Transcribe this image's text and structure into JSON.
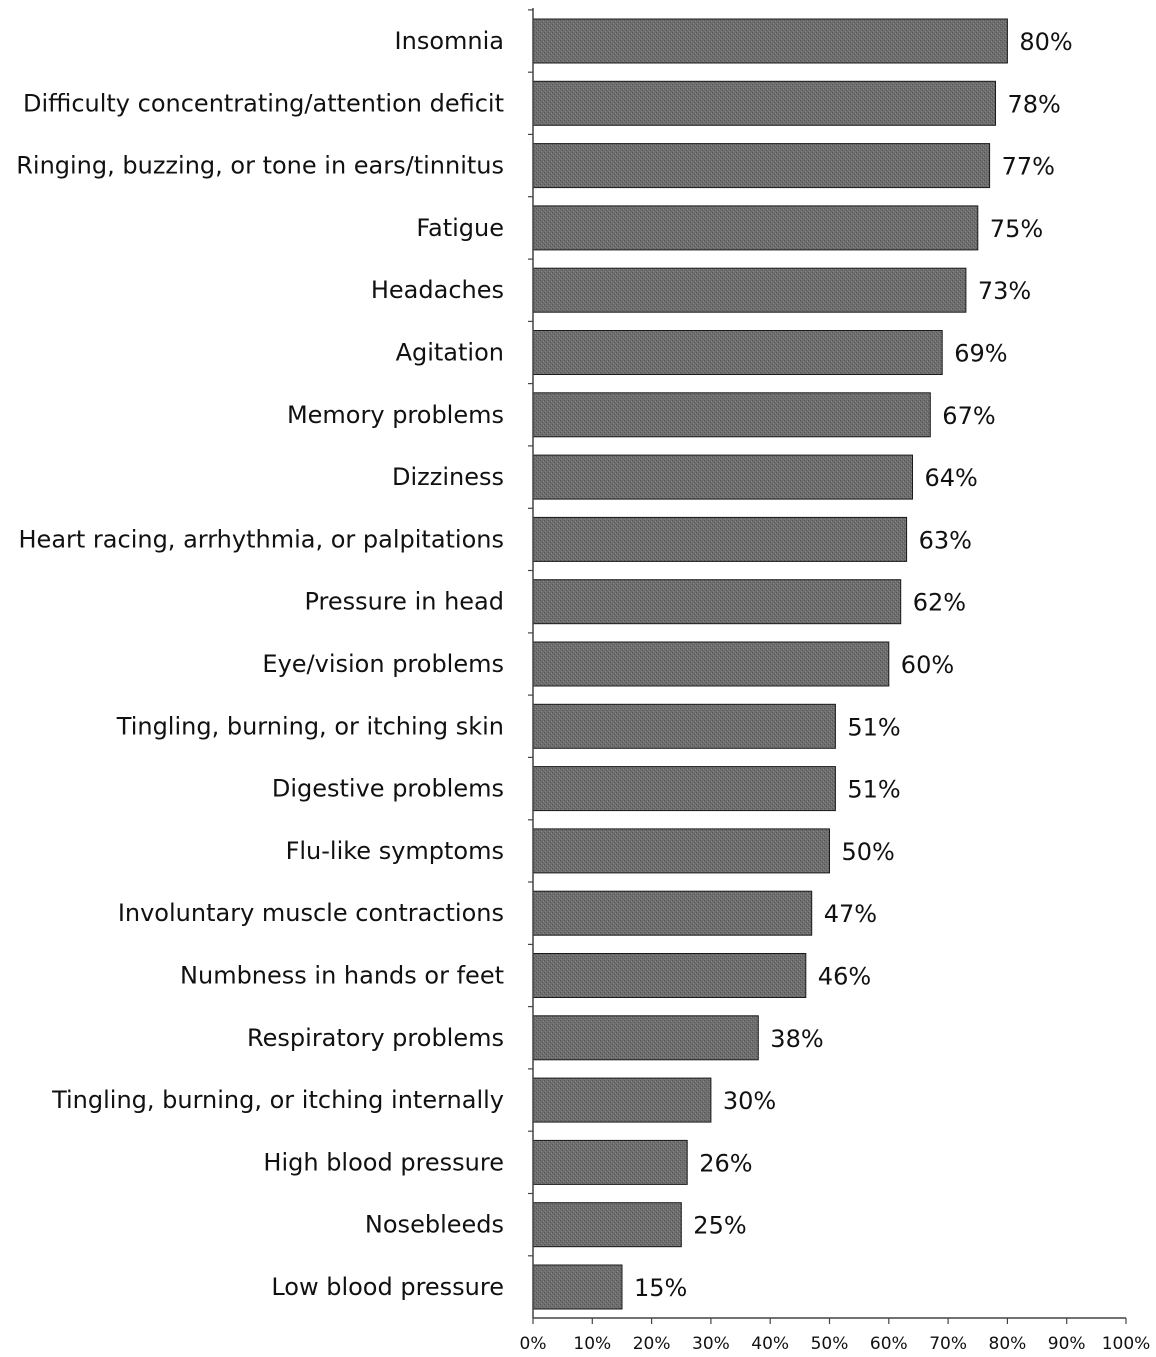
{
  "chart_data": {
    "type": "bar",
    "orientation": "horizontal",
    "categories": [
      "Insomnia",
      "Difficulty concentrating/attention deficit",
      "Ringing, buzzing, or tone in ears/tinnitus",
      "Fatigue",
      "Headaches",
      "Agitation",
      "Memory problems",
      "Dizziness",
      "Heart racing, arrhythmia, or palpitations",
      "Pressure in head",
      "Eye/vision problems",
      "Tingling, burning, or itching skin",
      "Digestive problems",
      "Flu-like symptoms",
      "Involuntary muscle contractions",
      "Numbness in hands or feet",
      "Respiratory problems",
      "Tingling, burning, or itching internally",
      "High blood pressure",
      "Nosebleeds",
      "Low blood pressure"
    ],
    "values": [
      80,
      78,
      77,
      75,
      73,
      69,
      67,
      64,
      63,
      62,
      60,
      51,
      51,
      50,
      47,
      46,
      38,
      30,
      26,
      25,
      15
    ],
    "value_labels": [
      "80%",
      "78%",
      "77%",
      "75%",
      "73%",
      "69%",
      "67%",
      "64%",
      "63%",
      "62%",
      "60%",
      "51%",
      "51%",
      "50%",
      "47%",
      "46%",
      "38%",
      "30%",
      "26%",
      "25%",
      "15%"
    ],
    "x_ticks": [
      "0%",
      "10%",
      "20%",
      "30%",
      "40%",
      "50%",
      "60%",
      "70%",
      "80%",
      "90%",
      "100%"
    ],
    "xlim": [
      0,
      100
    ],
    "title": "",
    "xlabel": "",
    "ylabel": "",
    "grid": false,
    "legend": "none",
    "bar_color": "#6b6b6b",
    "bar_edge_color": "#1a1a1a"
  }
}
